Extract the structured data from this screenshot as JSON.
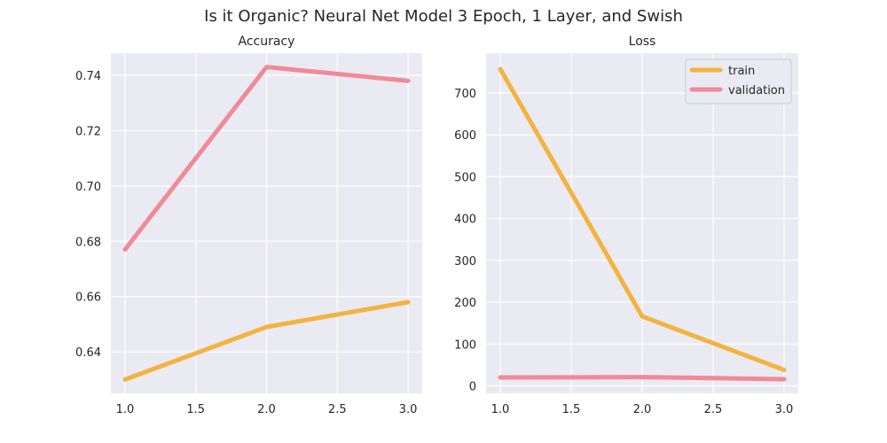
{
  "figure": {
    "suptitle": "Is it Organic? Neural Net Model 3 Epoch, 1 Layer, and Swish"
  },
  "colors": {
    "train": "#f3b341",
    "validation": "#ef8b98",
    "panel_bg": "#eaeaf2",
    "grid": "#ffffff"
  },
  "chart_data": [
    {
      "type": "line",
      "title": "Accuracy",
      "xlabel": "",
      "ylabel": "",
      "x": [
        1.0,
        2.0,
        3.0
      ],
      "xlim": [
        0.9,
        3.1
      ],
      "ylim": [
        0.625,
        0.748
      ],
      "xticks": [
        1.0,
        1.5,
        2.0,
        2.5,
        3.0
      ],
      "xtick_labels": [
        "1.0",
        "1.5",
        "2.0",
        "2.5",
        "3.0"
      ],
      "yticks": [
        0.64,
        0.66,
        0.68,
        0.7,
        0.72,
        0.74
      ],
      "ytick_labels": [
        "0.64",
        "0.66",
        "0.68",
        "0.70",
        "0.72",
        "0.74"
      ],
      "grid": true,
      "series": [
        {
          "key": "train",
          "values": [
            0.63,
            0.649,
            0.658
          ]
        },
        {
          "key": "validation",
          "values": [
            0.677,
            0.743,
            0.738
          ]
        }
      ]
    },
    {
      "type": "line",
      "title": "Loss",
      "xlabel": "",
      "ylabel": "",
      "x": [
        1.0,
        2.0,
        3.0
      ],
      "xlim": [
        0.9,
        3.1
      ],
      "ylim": [
        -18,
        795
      ],
      "xticks": [
        1.0,
        1.5,
        2.0,
        2.5,
        3.0
      ],
      "xtick_labels": [
        "1.0",
        "1.5",
        "2.0",
        "2.5",
        "3.0"
      ],
      "yticks": [
        0,
        100,
        200,
        300,
        400,
        500,
        600,
        700
      ],
      "ytick_labels": [
        "0",
        "100",
        "200",
        "300",
        "400",
        "500",
        "600",
        "700"
      ],
      "grid": true,
      "legend": {
        "placement": "top-right",
        "entries": [
          {
            "key": "train",
            "label": "train"
          },
          {
            "key": "validation",
            "label": "validation"
          }
        ]
      },
      "series": [
        {
          "name": "train",
          "key": "train",
          "values": [
            757,
            166,
            38
          ]
        },
        {
          "name": "validation",
          "key": "validation",
          "values": [
            20,
            21,
            16
          ]
        }
      ]
    }
  ]
}
